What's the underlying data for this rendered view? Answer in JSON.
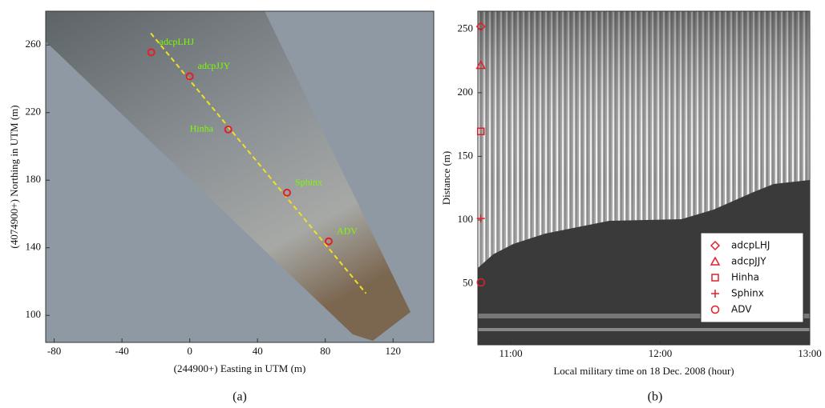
{
  "chart_data": [
    {
      "type": "scatter",
      "xlabel": "(244900+) Easting in UTM (m)",
      "ylabel": "(4074900+) Northing in UTM (m)",
      "caption": "(a)",
      "x": [
        -22.7,
        0,
        22.7,
        57.4,
        82
      ],
      "values": [
        255.7,
        241.5,
        210,
        172.6,
        143.8
      ],
      "point_labels": [
        "adcpLHJ",
        "adcpJJY",
        "Hinha",
        "Sphinx",
        "ADV"
      ],
      "color": "#e0202a",
      "transect": {
        "x": [
          -23,
          104
        ],
        "y": [
          267,
          113
        ],
        "color": "#f0e020"
      },
      "xlim": [
        -85,
        144
      ],
      "ylim": [
        84,
        280
      ],
      "xticks": [
        -80,
        -40,
        0,
        40,
        80,
        120
      ],
      "yticks": [
        100,
        140,
        180,
        220,
        260
      ]
    },
    {
      "type": "scatter",
      "xlabel": "Local military time on 18 Dec. 2008 (hour)",
      "ylabel": "Distance (m)",
      "caption": "(b)",
      "series": [
        {
          "name": "adcpLHJ",
          "marker": "diamond",
          "color": "#e0202a",
          "x": [
            10.8
          ],
          "values": [
            252
          ]
        },
        {
          "name": "adcpJJY",
          "marker": "triangle",
          "color": "#e0202a",
          "x": [
            10.8
          ],
          "values": [
            221.6
          ]
        },
        {
          "name": "Hinha",
          "marker": "square",
          "color": "#e0202a",
          "x": [
            10.8
          ],
          "values": [
            169.6
          ]
        },
        {
          "name": "Sphinx",
          "marker": "plus",
          "color": "#e0202a",
          "x": [
            10.8
          ],
          "values": [
            101.2
          ]
        },
        {
          "name": "ADV",
          "marker": "circle",
          "color": "#e0202a",
          "x": [
            10.8
          ],
          "values": [
            51
          ]
        }
      ],
      "legend": "lower right",
      "xlim": [
        10.78,
        13
      ],
      "ylim": [
        2,
        264
      ],
      "xticks": [
        {
          "value": 11,
          "label": "11:00"
        },
        {
          "value": 12,
          "label": "12:00"
        },
        {
          "value": 13,
          "label": "13:00"
        }
      ],
      "yticks": [
        50,
        100,
        150,
        200,
        250
      ]
    }
  ]
}
